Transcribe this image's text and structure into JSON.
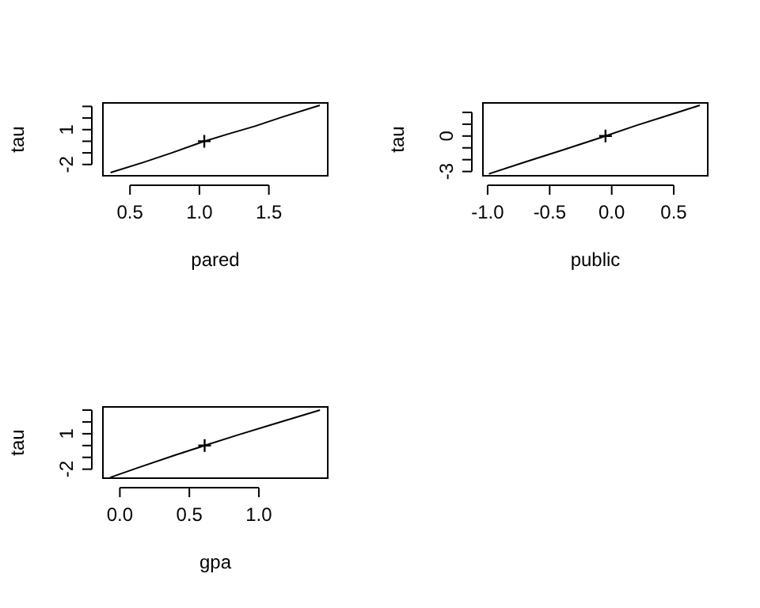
{
  "chart_data": [
    {
      "type": "line",
      "xlabel": "pared",
      "ylabel": "tau",
      "xlim": [
        0.305,
        1.924
      ],
      "ylim": [
        -2.97,
        3.3
      ],
      "xticks": [
        0.5,
        {
          "value": 1,
          "label": "1.0"
        },
        1.5
      ],
      "yticks": [
        -2,
        {
          "value": -1,
          "label": null
        },
        {
          "value": 0,
          "label": null
        },
        1,
        {
          "value": 2,
          "label": null
        },
        {
          "value": 3,
          "label": null
        }
      ],
      "grid": false,
      "series": [
        {
          "color": "#000000",
          "x": [
            0.36,
            0.6,
            0.8,
            1.035,
            1.2,
            1.4,
            1.6,
            1.867
          ],
          "values": [
            -2.7,
            -1.8,
            -1.0,
            0,
            0.6,
            1.3,
            2.1,
            3.1
          ]
        },
        {
          "type": "scatter",
          "color": "#000000",
          "marker": "cross",
          "x": [
            1.035
          ],
          "values": [
            0
          ]
        }
      ]
    },
    {
      "type": "line",
      "xlabel": "public",
      "ylabel": "tau",
      "xlim": [
        -1.038,
        0.774
      ],
      "ylim": [
        -3.36,
        2.8
      ],
      "xticks": [
        {
          "value": -1,
          "label": "-1.0"
        },
        -0.5,
        {
          "value": 0,
          "label": "0.0"
        },
        0.5
      ],
      "yticks": [
        -3,
        {
          "value": -2,
          "label": null
        },
        {
          "value": -1,
          "label": null
        },
        0,
        {
          "value": 1,
          "label": null
        },
        {
          "value": 2,
          "label": null
        }
      ],
      "grid": false,
      "series": [
        {
          "color": "#000000",
          "x": [
            -0.99,
            -0.7,
            -0.4,
            -0.05,
            0.2,
            0.5,
            0.71
          ],
          "values": [
            -3.2,
            -2.2,
            -1.2,
            0,
            0.9,
            1.9,
            2.6
          ]
        },
        {
          "type": "scatter",
          "color": "#000000",
          "marker": "cross",
          "x": [
            -0.05
          ],
          "values": [
            0
          ]
        }
      ]
    },
    {
      "type": "line",
      "xlabel": "gpa",
      "ylabel": "tau",
      "xlim": [
        -0.122,
        1.496
      ],
      "ylim": [
        -2.76,
        3.27
      ],
      "xticks": [
        {
          "value": 0,
          "label": "0.0"
        },
        0.5,
        {
          "value": 1,
          "label": "1.0"
        }
      ],
      "yticks": [
        -2,
        {
          "value": -1,
          "label": null
        },
        {
          "value": 0,
          "label": null
        },
        1,
        {
          "value": 2,
          "label": null
        },
        {
          "value": 3,
          "label": null
        }
      ],
      "grid": false,
      "series": [
        {
          "color": "#000000",
          "x": [
            -0.07,
            0.15,
            0.4,
            0.61,
            0.85,
            1.1,
            1.44
          ],
          "values": [
            -2.7,
            -1.8,
            -0.8,
            0,
            0.9,
            1.8,
            3.0
          ]
        },
        {
          "type": "scatter",
          "color": "#000000",
          "marker": "cross",
          "x": [
            0.61
          ],
          "values": [
            0
          ]
        }
      ]
    }
  ]
}
